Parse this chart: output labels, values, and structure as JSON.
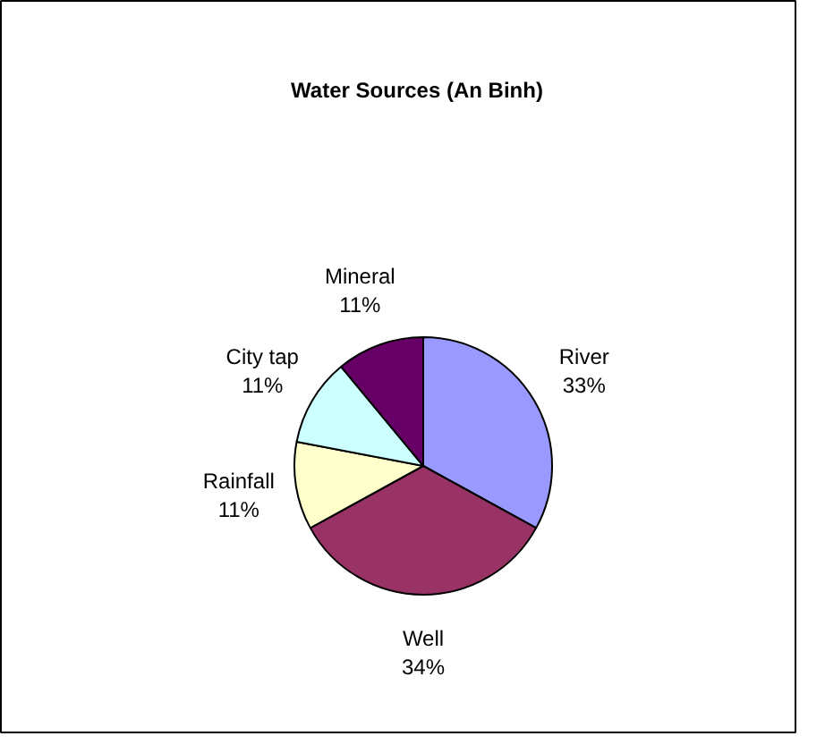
{
  "chart_data": {
    "type": "pie",
    "title": "Water Sources (An Binh)",
    "categories": [
      "River",
      "Well",
      "Rainfall",
      "City tap",
      "Mineral"
    ],
    "values": [
      33,
      34,
      11,
      11,
      11
    ],
    "value_labels": [
      "33%",
      "34%",
      "11%",
      "11%",
      "11%"
    ],
    "colors": [
      "#9999ff",
      "#993366",
      "#ffffcc",
      "#ccffff",
      "#660066"
    ]
  }
}
